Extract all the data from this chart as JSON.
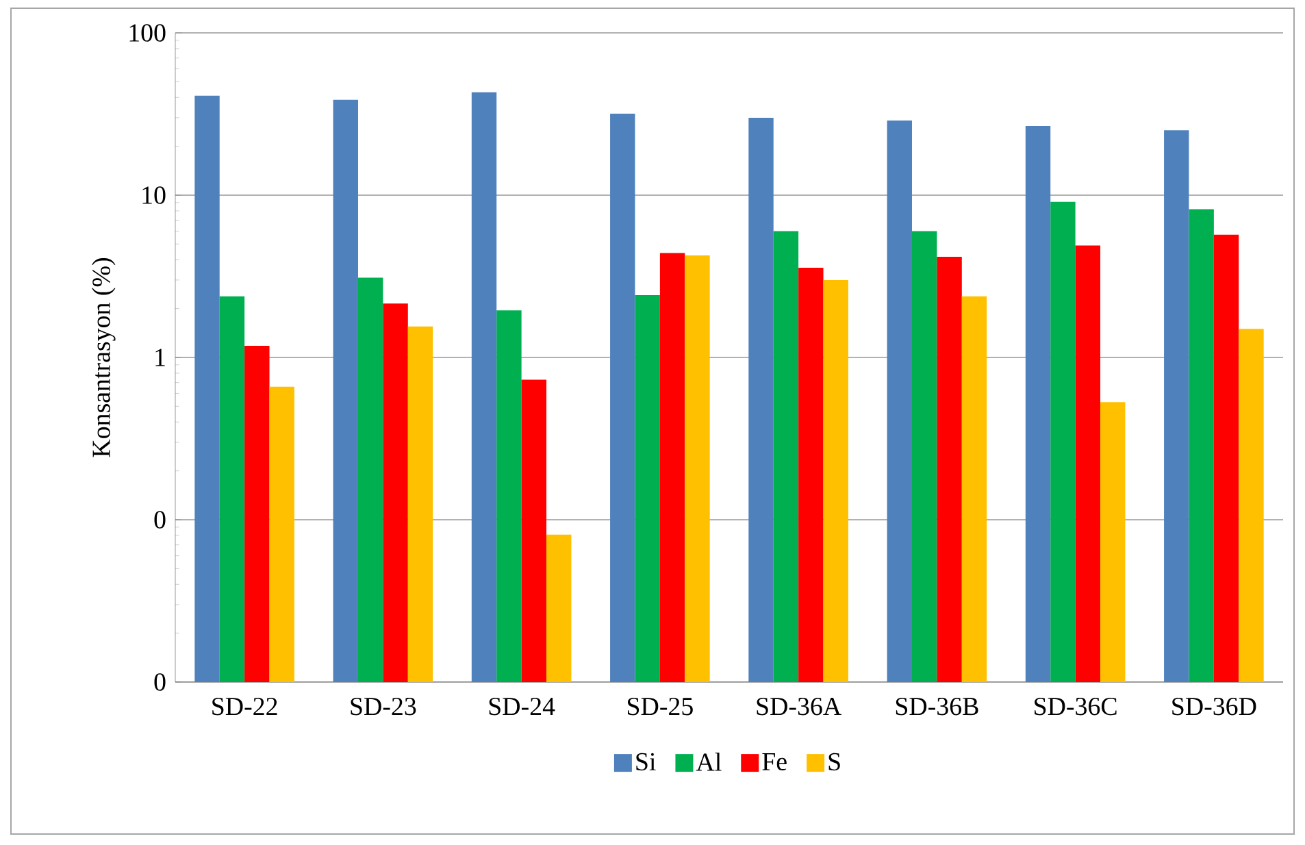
{
  "chart_data": {
    "type": "bar",
    "ylabel": "Konsantrasyon (%)",
    "categories": [
      "SD-22",
      "SD-23",
      "SD-24",
      "SD-25",
      "SD-36A",
      "SD-36B",
      "SD-36C",
      "SD-36D"
    ],
    "series": [
      {
        "name": "Si",
        "color": "#4f81bd",
        "values": [
          41,
          38.7,
          43,
          31.8,
          30,
          28.8,
          26.7,
          25.1
        ]
      },
      {
        "name": "Al",
        "color": "#00b050",
        "values": [
          2.38,
          3.1,
          1.95,
          2.42,
          6.0,
          6.0,
          9.1,
          8.2
        ]
      },
      {
        "name": "Fe",
        "color": "#ff0000",
        "values": [
          1.18,
          2.15,
          0.73,
          4.4,
          3.57,
          4.17,
          4.9,
          5.7
        ]
      },
      {
        "name": "S",
        "color": "#ffc000",
        "values": [
          0.66,
          1.55,
          0.081,
          4.25,
          3.0,
          2.38,
          0.53,
          1.5
        ]
      }
    ],
    "log": "y",
    "ylim": [
      0.01,
      100
    ],
    "yticks": [
      {
        "value": 0.01,
        "label": "0"
      },
      {
        "value": 0.1,
        "label": "0"
      },
      1,
      10,
      100
    ],
    "grid": "y",
    "legend": "bottom"
  }
}
